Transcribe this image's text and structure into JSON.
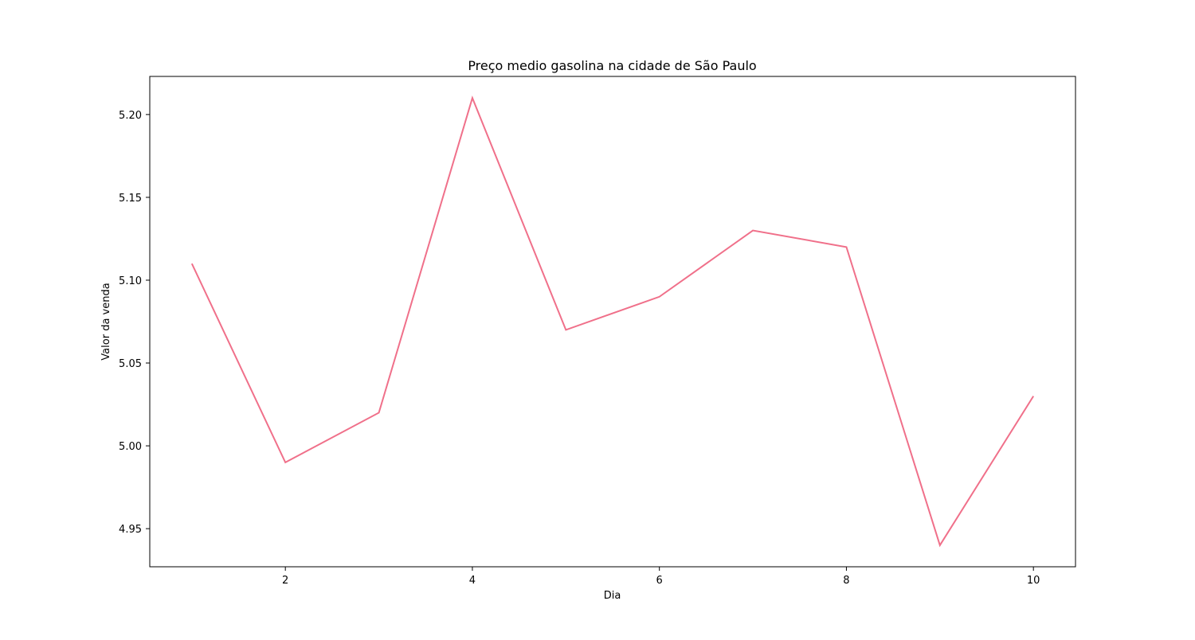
{
  "chart_data": {
    "type": "line",
    "title": "Preço medio gasolina na cidade de São Paulo",
    "xlabel": "Dia",
    "ylabel": "Valor da venda",
    "x": [
      1,
      2,
      3,
      4,
      5,
      6,
      7,
      8,
      9,
      10
    ],
    "series": [
      {
        "values": [
          5.11,
          4.99,
          5.02,
          5.21,
          5.07,
          5.09,
          5.13,
          5.12,
          4.94,
          5.03
        ],
        "color": "#f0708a"
      }
    ],
    "xlim": [
      0.55,
      10.45
    ],
    "ylim": [
      4.927,
      5.223
    ],
    "xticks": [
      2,
      4,
      6,
      8,
      10
    ],
    "xtick_labels": [
      "2",
      "4",
      "6",
      "8",
      "10"
    ],
    "yticks": [
      4.95,
      5.0,
      5.05,
      5.1,
      5.15,
      5.2
    ],
    "ytick_labels": [
      "4.95",
      "5.00",
      "5.05",
      "5.10",
      "5.15",
      "5.20"
    ],
    "grid": false,
    "legend": false
  }
}
